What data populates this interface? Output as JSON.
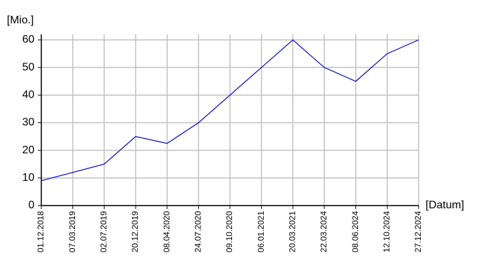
{
  "chart_data": {
    "type": "line",
    "y_label": "[Mio.]",
    "x_label": "[Datum]",
    "categories": [
      "01.12.2018",
      "07.03.2019",
      "02.07.2019",
      "20.12.2019",
      "08.04.2020",
      "24.07.2020",
      "09.10.2020",
      "06.01.2021",
      "20.03.2021",
      "22.03.2024",
      "08.06.2024",
      "12.10.2024",
      "27.12.2024"
    ],
    "values": [
      9,
      12,
      15,
      25,
      22.5,
      30,
      40,
      50,
      60,
      50,
      45,
      55,
      60
    ],
    "color": "#0000c8",
    "ylim": [
      0,
      60
    ],
    "yticks": [
      0,
      10,
      20,
      30,
      40,
      50,
      60
    ],
    "grid": true
  }
}
